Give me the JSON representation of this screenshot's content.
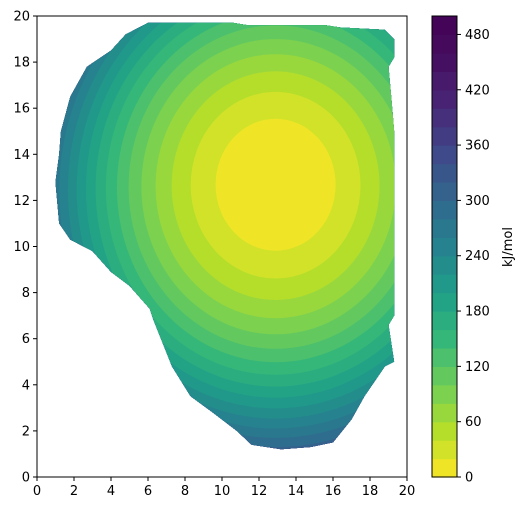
{
  "chart_data": {
    "type": "contour",
    "title": "",
    "xlabel": "",
    "ylabel": "",
    "xlim": [
      0,
      20
    ],
    "ylim": [
      0,
      20
    ],
    "xticks": [
      "0",
      "2",
      "4",
      "6",
      "8",
      "10",
      "12",
      "14",
      "16",
      "18",
      "20"
    ],
    "yticks": [
      "0",
      "2",
      "4",
      "6",
      "8",
      "10",
      "12",
      "14",
      "16",
      "18",
      "20"
    ],
    "colorbar": {
      "label": "kJ/mol",
      "range": [
        0,
        500
      ],
      "level_step": 20,
      "ticks": [
        "0",
        "60",
        "120",
        "180",
        "240",
        "300",
        "360",
        "420",
        "480"
      ],
      "tick_values": [
        0,
        60,
        120,
        180,
        240,
        300,
        360,
        420,
        480
      ],
      "colormap": "viridis_r"
    },
    "minimum": {
      "x": 12.9,
      "y": 12.7,
      "value": 0
    },
    "field_boundary": [
      [
        6.0,
        19.7
      ],
      [
        10.6,
        19.7
      ],
      [
        11.4,
        19.6
      ],
      [
        13.6,
        19.6
      ],
      [
        15.6,
        19.6
      ],
      [
        16.4,
        19.5
      ],
      [
        18.8,
        19.4
      ],
      [
        19.3,
        19.0
      ],
      [
        19.3,
        18.2
      ],
      [
        19.0,
        17.8
      ],
      [
        19.2,
        16.0
      ],
      [
        19.3,
        15.0
      ],
      [
        19.3,
        12.6
      ],
      [
        19.3,
        10.0
      ],
      [
        19.3,
        7.0
      ],
      [
        19.0,
        6.6
      ],
      [
        19.3,
        5.0
      ],
      [
        18.8,
        4.8
      ],
      [
        17.7,
        3.5
      ],
      [
        17.0,
        2.5
      ],
      [
        16.0,
        1.5
      ],
      [
        14.8,
        1.3
      ],
      [
        13.2,
        1.2
      ],
      [
        11.6,
        1.4
      ],
      [
        10.8,
        2.0
      ],
      [
        9.5,
        2.8
      ],
      [
        8.3,
        3.5
      ],
      [
        7.3,
        4.8
      ],
      [
        6.3,
        6.8
      ],
      [
        6.1,
        7.3
      ],
      [
        5.0,
        8.3
      ],
      [
        4.0,
        8.9
      ],
      [
        3.0,
        9.8
      ],
      [
        1.8,
        10.3
      ],
      [
        1.2,
        11.0
      ],
      [
        1.0,
        12.8
      ],
      [
        1.2,
        14.0
      ],
      [
        1.3,
        15.0
      ],
      [
        1.8,
        16.5
      ],
      [
        2.7,
        17.8
      ],
      [
        4.0,
        18.5
      ],
      [
        4.8,
        19.2
      ]
    ],
    "colors": {
      "low": "#fde725",
      "high": "#440154",
      "frame": "#000000",
      "background": "#ffffff"
    }
  }
}
